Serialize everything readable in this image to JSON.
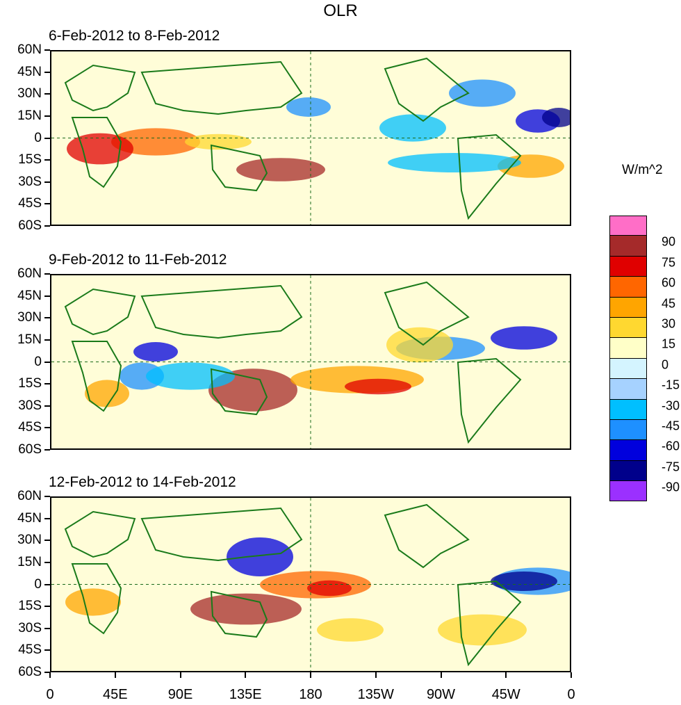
{
  "title": "OLR",
  "units": "W/m^2",
  "panels": [
    {
      "label": "6-Feb-2012 to 8-Feb-2012"
    },
    {
      "label": "9-Feb-2012 to 11-Feb-2012"
    },
    {
      "label": "12-Feb-2012 to 14-Feb-2012"
    }
  ],
  "lat_labels": [
    "60N",
    "45N",
    "30N",
    "15N",
    "0",
    "15S",
    "30S",
    "45S",
    "60S"
  ],
  "lon_labels": [
    "0",
    "45E",
    "90E",
    "135E",
    "180",
    "135W",
    "90W",
    "45W",
    "0"
  ],
  "colorbar": {
    "colors": [
      "#ff6ec7",
      "#a52a2a",
      "#e00000",
      "#ff6600",
      "#ffa500",
      "#ffd830",
      "#ffffc8",
      "#d4f4ff",
      "#a6d2ff",
      "#00bfff",
      "#1e90ff",
      "#0000dd",
      "#00008b",
      "#9b30ff"
    ],
    "labels": [
      "90",
      "75",
      "60",
      "45",
      "30",
      "15",
      "0",
      "-15",
      "-30",
      "-45",
      "-60",
      "-75",
      "-90"
    ]
  }
}
